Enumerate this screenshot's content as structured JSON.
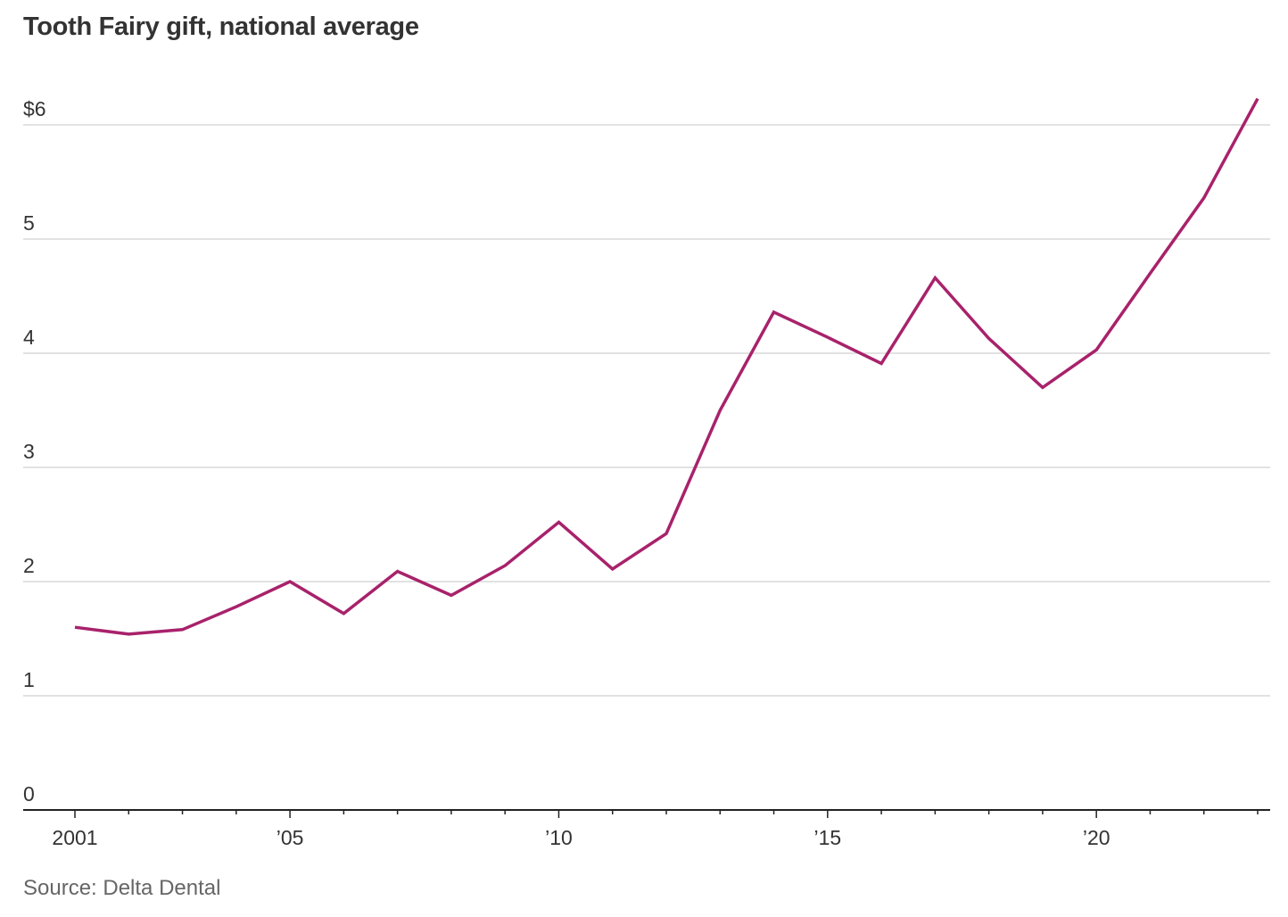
{
  "chart_data": {
    "type": "line",
    "title": "Tooth Fairy gift, national average",
    "source": "Source: Delta Dental",
    "xlabel": "",
    "ylabel": "",
    "xlim": [
      2001,
      2023
    ],
    "ylim": [
      0,
      6.25
    ],
    "grid": true,
    "y_ticks": [
      {
        "value": 0,
        "label": "0"
      },
      {
        "value": 1,
        "label": "1"
      },
      {
        "value": 2,
        "label": "2"
      },
      {
        "value": 3,
        "label": "3"
      },
      {
        "value": 4,
        "label": "4"
      },
      {
        "value": 5,
        "label": "5"
      },
      {
        "value": 6,
        "label": "$6"
      }
    ],
    "x_ticks": [
      {
        "value": 2001,
        "label": "2001"
      },
      {
        "value": 2005,
        "label": "’05"
      },
      {
        "value": 2010,
        "label": "’10"
      },
      {
        "value": 2015,
        "label": "’15"
      },
      {
        "value": 2020,
        "label": "’20"
      }
    ],
    "x_minor_ticks": [
      2002,
      2003,
      2004,
      2006,
      2007,
      2008,
      2009,
      2011,
      2012,
      2013,
      2014,
      2016,
      2017,
      2018,
      2019,
      2021,
      2022,
      2023
    ],
    "series": [
      {
        "color": "#a8226b",
        "x": [
          2001,
          2002,
          2003,
          2004,
          2005,
          2006,
          2007,
          2008,
          2009,
          2010,
          2011,
          2012,
          2013,
          2014,
          2015,
          2016,
          2017,
          2018,
          2019,
          2020,
          2021,
          2022,
          2023
        ],
        "values": [
          1.6,
          1.54,
          1.58,
          1.78,
          2.0,
          1.72,
          2.09,
          1.88,
          2.14,
          2.52,
          2.11,
          2.42,
          3.5,
          4.36,
          4.14,
          3.91,
          4.66,
          4.13,
          3.7,
          4.03,
          4.7,
          5.36,
          6.23
        ]
      }
    ]
  }
}
